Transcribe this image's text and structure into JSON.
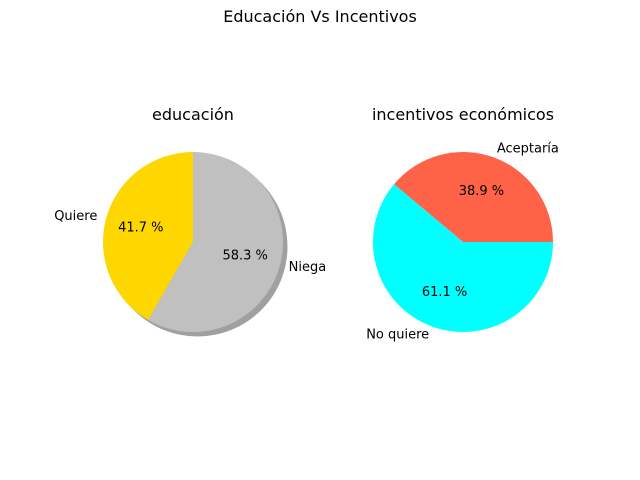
{
  "figure": {
    "title": "Educación Vs Incentivos"
  },
  "chart_data": [
    {
      "type": "pie",
      "title": "educación",
      "shadow": true,
      "slices": [
        {
          "label": "Quiere",
          "value": 41.7,
          "pct_label": "41.7 %",
          "color": "#ffd700"
        },
        {
          "label": "Niega",
          "value": 58.3,
          "pct_label": "58.3 %",
          "color": "#c0c0c0"
        }
      ]
    },
    {
      "type": "pie",
      "title": "incentivos económicos",
      "shadow": false,
      "slices": [
        {
          "label": "Aceptaría",
          "value": 38.9,
          "pct_label": "38.9 %",
          "color": "#ff6347"
        },
        {
          "label": "No quiere",
          "value": 61.1,
          "pct_label": "61.1 %",
          "color": "#00ffff"
        }
      ]
    }
  ]
}
